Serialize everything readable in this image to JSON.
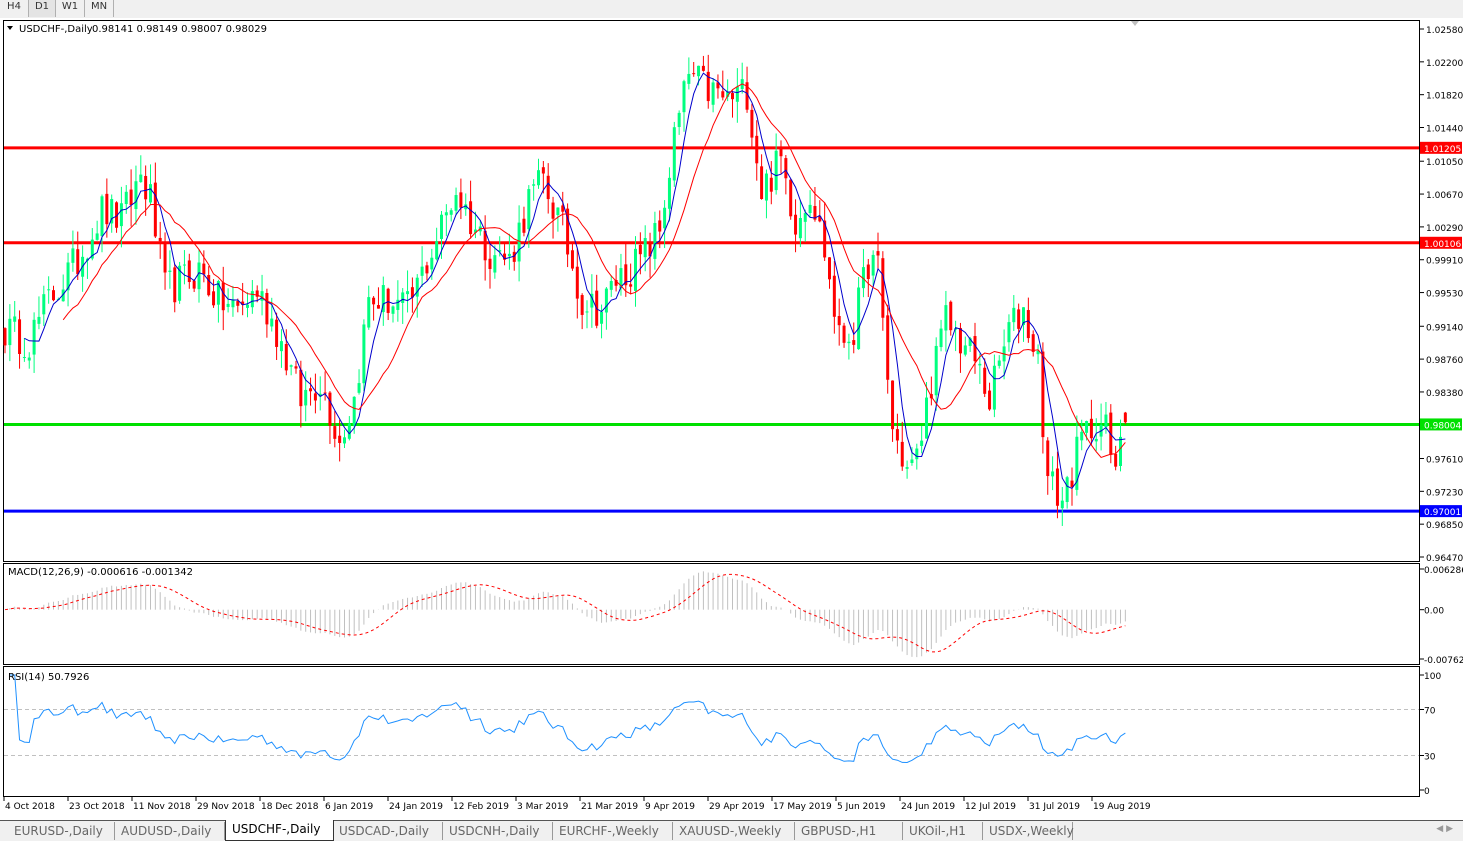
{
  "timeframes": [
    "H4",
    "D1",
    "W1",
    "MN"
  ],
  "selected_timeframe": "D1",
  "chart_header": {
    "symbol": "USDCHF-,Daily",
    "ohlc": "0.98141 0.98149 0.98007 0.98029"
  },
  "macd_header": "MACD(12,26,9) -0.000616 -0.001342",
  "rsi_header": "RSI(14) 50.7926",
  "colors": {
    "bull": "#00ff7f",
    "bear": "#ff0000",
    "ma_fast": "#0000cc",
    "ma_slow": "#ff0000",
    "macd_hist": "#c0c0c0",
    "macd_signal": "#ff0000",
    "rsi": "#1e90ff"
  },
  "chart_data": {
    "type": "candlestick",
    "symbol": "USDCHF",
    "timeframe": "Daily",
    "ylim": [
      0.9647,
      1.0258
    ],
    "price_ticks": [
      "1.02580",
      "1.02200",
      "1.01820",
      "1.01440",
      "1.01050",
      "1.00670",
      "1.00290",
      "0.99910",
      "0.99530",
      "0.99140",
      "0.98760",
      "0.98380",
      "0.97610",
      "0.97230",
      "0.96850",
      "0.96470"
    ],
    "date_ticks": [
      "4 Oct 2018",
      "23 Oct 2018",
      "11 Nov 2018",
      "29 Nov 2018",
      "18 Dec 2018",
      "6 Jan 2019",
      "24 Jan 2019",
      "12 Feb 2019",
      "3 Mar 2019",
      "21 Mar 2019",
      "9 Apr 2019",
      "29 Apr 2019",
      "17 May 2019",
      "5 Jun 2019",
      "24 Jun 2019",
      "12 Jul 2019",
      "31 Jul 2019",
      "19 Aug 2019"
    ],
    "bar_count": 232,
    "close_anchors": [
      [
        0,
        0.991
      ],
      [
        5,
        0.9898
      ],
      [
        9,
        0.9944
      ],
      [
        15,
        0.999
      ],
      [
        20,
        1.0048
      ],
      [
        24,
        1.0037
      ],
      [
        28,
        1.0089
      ],
      [
        30,
        1.006
      ],
      [
        33,
        0.9956
      ],
      [
        37,
        0.9968
      ],
      [
        40,
        0.9979
      ],
      [
        44,
        0.9944
      ],
      [
        48,
        0.9933
      ],
      [
        52,
        0.9956
      ],
      [
        56,
        0.991
      ],
      [
        61,
        0.9829
      ],
      [
        65,
        0.9852
      ],
      [
        69,
        0.9782
      ],
      [
        72,
        0.9829
      ],
      [
        75,
        0.9944
      ],
      [
        79,
        0.9944
      ],
      [
        83,
        0.9933
      ],
      [
        88,
        1.0002
      ],
      [
        93,
        1.0072
      ],
      [
        96,
        1.0037
      ],
      [
        100,
        1.0002
      ],
      [
        104,
        0.999
      ],
      [
        108,
        1.006
      ],
      [
        111,
        1.0083
      ],
      [
        115,
        1.0025
      ],
      [
        119,
        0.9944
      ],
      [
        123,
        0.9933
      ],
      [
        126,
        0.9968
      ],
      [
        131,
        0.999
      ],
      [
        135,
        1.0025
      ],
      [
        138,
        1.013
      ],
      [
        141,
        1.0205
      ],
      [
        145,
        1.0187
      ],
      [
        149,
        1.0176
      ],
      [
        153,
        1.0187
      ],
      [
        156,
        1.0072
      ],
      [
        160,
        1.0106
      ],
      [
        163,
        1.0037
      ],
      [
        166,
        1.0072
      ],
      [
        169,
        1.0002
      ],
      [
        172,
        0.9898
      ],
      [
        175,
        0.991
      ],
      [
        178,
        0.999
      ],
      [
        180,
        0.9979
      ],
      [
        183,
        0.9794
      ],
      [
        186,
        0.9748
      ],
      [
        188,
        0.9759
      ],
      [
        191,
        0.9852
      ],
      [
        194,
        0.9921
      ],
      [
        197,
        0.9898
      ],
      [
        200,
        0.9875
      ],
      [
        203,
        0.9829
      ],
      [
        207,
        0.991
      ],
      [
        210,
        0.9933
      ],
      [
        213,
        0.9875
      ],
      [
        215,
        0.9736
      ],
      [
        218,
        0.9713
      ],
      [
        220,
        0.9748
      ],
      [
        222,
        0.9782
      ],
      [
        225,
        0.9806
      ],
      [
        227,
        0.9794
      ],
      [
        229,
        0.9736
      ],
      [
        230,
        0.9794
      ],
      [
        231,
        0.98029
      ]
    ],
    "last_bar": {
      "open": 0.98141,
      "high": 0.98149,
      "low": 0.98007,
      "close": 0.98029
    },
    "horizontal_lines": [
      {
        "price": 1.01205,
        "label": "1.01205",
        "color": "#ff0000"
      },
      {
        "price": 1.00106,
        "label": "1.00106",
        "color": "#ff0000"
      },
      {
        "price": 0.98004,
        "label": "0.98004",
        "color": "#00e000"
      },
      {
        "price": 0.97001,
        "label": "0.97001",
        "color": "#0000ff"
      }
    ],
    "moving_averages": [
      {
        "period": 5,
        "color": "#0000cc"
      },
      {
        "period": 13,
        "color": "#ff0000"
      }
    ],
    "macd": {
      "params": [
        12,
        26,
        9
      ],
      "ylim": [
        -0.00762,
        0.006286
      ],
      "ticks": [
        "0.006286",
        "0.00",
        "-0.00762"
      ]
    },
    "rsi": {
      "period": 14,
      "ylim": [
        0,
        100
      ],
      "levels": [
        70,
        30
      ],
      "ticks": [
        "100",
        "70",
        "30",
        "0"
      ]
    }
  },
  "bottom_tabs": [
    "EURUSD-,Daily",
    "AUDUSD-,Daily",
    "USDCHF-,Daily",
    "USDCAD-,Daily",
    "USDCNH-,Daily",
    "EURCHF-,Weekly",
    "XAUUSD-,Weekly",
    "GBPUSD-,H1",
    "UKOil-,H1",
    "USDX-,Weekly"
  ],
  "active_tab": "USDCHF-,Daily"
}
